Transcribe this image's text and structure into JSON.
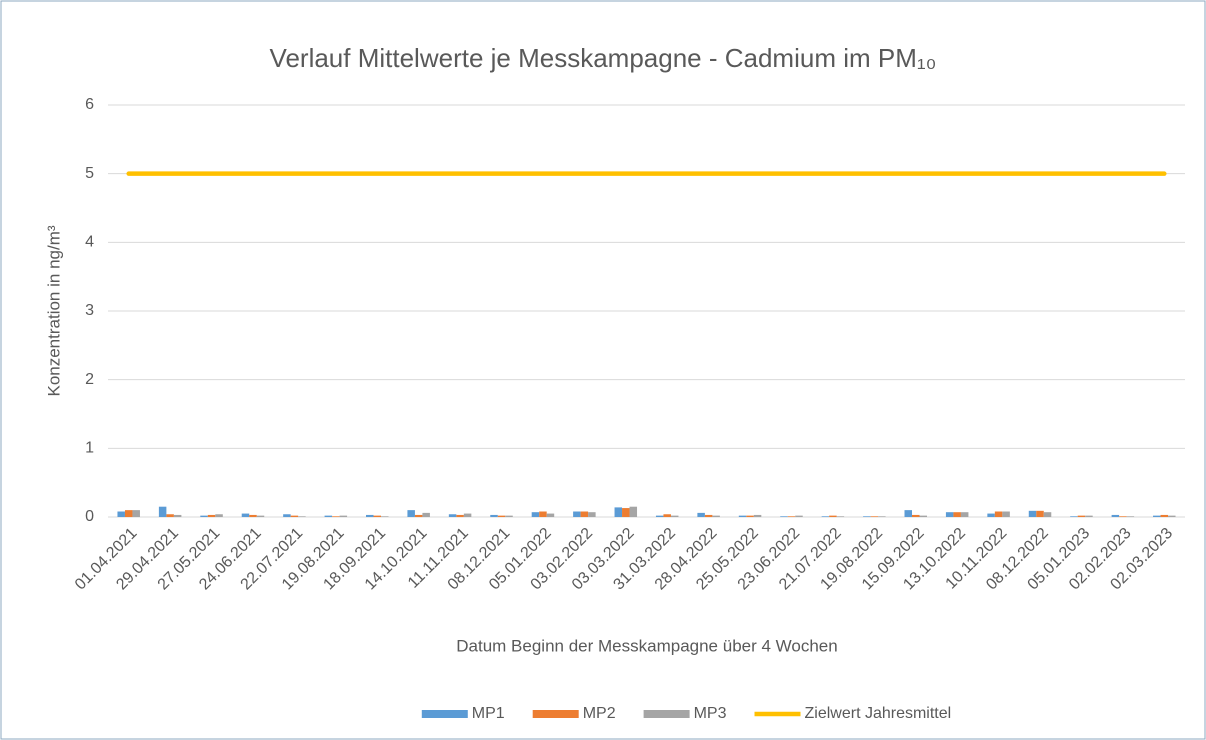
{
  "chart_data": {
    "type": "bar",
    "title": "Verlauf Mittelwerte je Messkampagne - Cadmium im PM₁₀",
    "x_label": "Datum Beginn der Messkampagne über 4 Wochen",
    "y_label": "Konzentration in ng/m³",
    "categories": [
      "01.04.2021",
      "29.04.2021",
      "27.05.2021",
      "24.06.2021",
      "22.07.2021",
      "19.08.2021",
      "18.09.2021",
      "14.10.2021",
      "11.11.2021",
      "08.12.2021",
      "05.01.2022",
      "03.02.2022",
      "03.03.2022",
      "31.03.2022",
      "28.04.2022",
      "25.05.2022",
      "23.06.2022",
      "21.07.2022",
      "19.08.2022",
      "15.09.2022",
      "13.10.2022",
      "10.11.2022",
      "08.12.2022",
      "05.01.2023",
      "02.02.2023",
      "02.03.2023"
    ],
    "series": [
      {
        "name": "MP1",
        "color": "#5b9bd5",
        "values": [
          0.08,
          0.15,
          0.02,
          0.05,
          0.04,
          0.02,
          0.03,
          0.1,
          0.04,
          0.03,
          0.07,
          0.08,
          0.14,
          0.02,
          0.06,
          0.02,
          0.01,
          0.01,
          0.01,
          0.1,
          0.07,
          0.05,
          0.09,
          0.01,
          0.03,
          0.02
        ]
      },
      {
        "name": "MP2",
        "color": "#ed7d31",
        "values": [
          0.1,
          0.04,
          0.03,
          0.03,
          0.02,
          0.01,
          0.02,
          0.03,
          0.03,
          0.02,
          0.08,
          0.08,
          0.13,
          0.04,
          0.03,
          0.02,
          0.01,
          0.02,
          0.01,
          0.03,
          0.07,
          0.08,
          0.09,
          0.02,
          0.01,
          0.03
        ]
      },
      {
        "name": "MP3",
        "color": "#a5a5a5",
        "values": [
          0.1,
          0.03,
          0.04,
          0.02,
          0.01,
          0.02,
          0.01,
          0.06,
          0.05,
          0.02,
          0.05,
          0.07,
          0.15,
          0.02,
          0.02,
          0.03,
          0.02,
          0.01,
          0.01,
          0.02,
          0.07,
          0.08,
          0.07,
          0.02,
          0.01,
          0.02
        ]
      },
      {
        "name": "Zielwert Jahresmittel",
        "type": "line",
        "color": "#ffc000",
        "values": [
          5,
          5,
          5,
          5,
          5,
          5,
          5,
          5,
          5,
          5,
          5,
          5,
          5,
          5,
          5,
          5,
          5,
          5,
          5,
          5,
          5,
          5,
          5,
          5,
          5,
          5
        ]
      }
    ],
    "ylim": [
      0,
      6
    ],
    "yticks": [
      0,
      1,
      2,
      3,
      4,
      5,
      6
    ],
    "grid": true,
    "legend": "bottom"
  }
}
